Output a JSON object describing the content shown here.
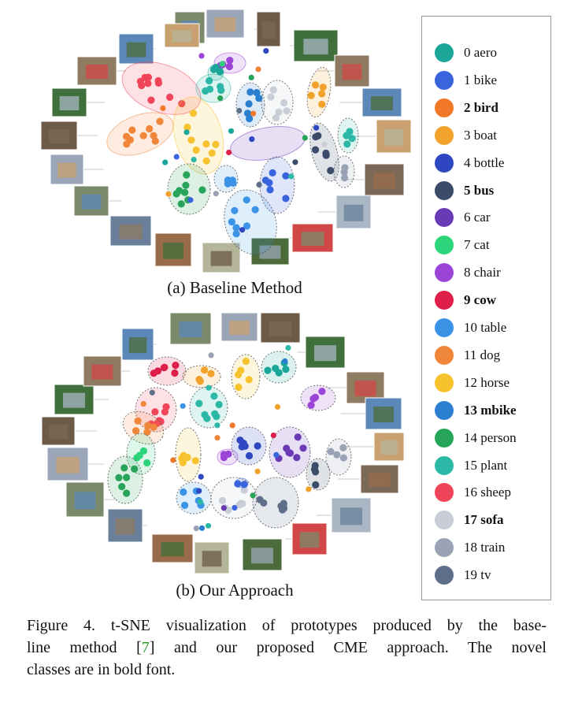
{
  "panels": [
    {
      "label": "(a) Baseline Method"
    },
    {
      "label": "(b) Our Approach"
    }
  ],
  "legend": [
    {
      "label": "0 aero",
      "color": "#1aa79a",
      "bold": false
    },
    {
      "label": "1 bike",
      "color": "#3a64dd",
      "bold": false
    },
    {
      "label": "2 bird",
      "color": "#f07828",
      "bold": true
    },
    {
      "label": "3 boat",
      "color": "#f1a22b",
      "bold": false
    },
    {
      "label": "4 bottle",
      "color": "#2e46c0",
      "bold": false
    },
    {
      "label": "5 bus",
      "color": "#3b4b6a",
      "bold": true
    },
    {
      "label": "6 car",
      "color": "#6a3ab5",
      "bold": false
    },
    {
      "label": "7 cat",
      "color": "#2dd47a",
      "bold": false
    },
    {
      "label": "8 chair",
      "color": "#9b45d6",
      "bold": false
    },
    {
      "label": "9 cow",
      "color": "#dd1f4a",
      "bold": true
    },
    {
      "label": "10 table",
      "color": "#3b93e6",
      "bold": false
    },
    {
      "label": "11 dog",
      "color": "#f0863a",
      "bold": false
    },
    {
      "label": "12 horse",
      "color": "#f6c22e",
      "bold": false
    },
    {
      "label": "13 mbike",
      "color": "#2b7fd1",
      "bold": true
    },
    {
      "label": "14 person",
      "color": "#27a35a",
      "bold": false
    },
    {
      "label": "15 plant",
      "color": "#2bb8a6",
      "bold": false
    },
    {
      "label": "16 sheep",
      "color": "#f0445a",
      "bold": false
    },
    {
      "label": "17 sofa",
      "color": "#c9ced6",
      "bold": true
    },
    {
      "label": "18 train",
      "color": "#9aa3b5",
      "bold": false
    },
    {
      "label": "19 tv",
      "color": "#5f6f8a",
      "bold": false
    }
  ],
  "caption": {
    "line1": "Figure 4. t-SNE visualization of prototypes produced by the base-",
    "line2_pre": "line method [",
    "line2_cite": "7",
    "line2_post": "] and our proposed CME approach.  The novel",
    "line3": "classes are in bold font."
  }
}
